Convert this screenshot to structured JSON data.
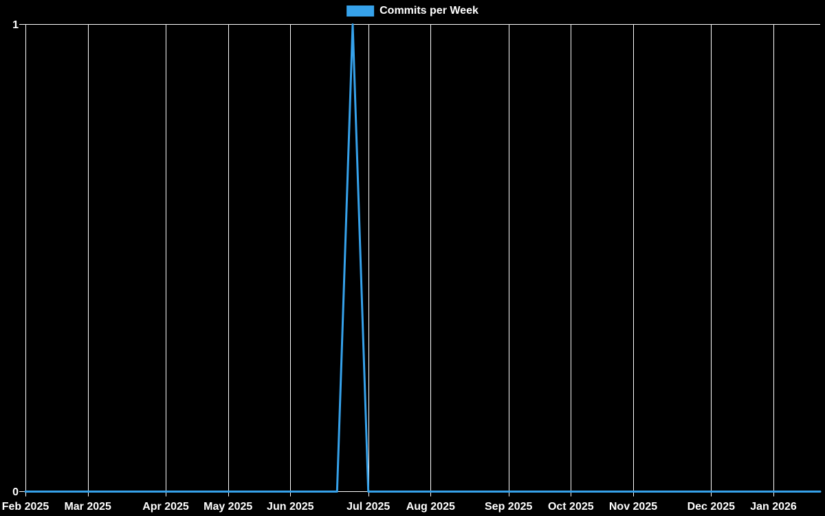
{
  "legend": {
    "label": "Commits per Week"
  },
  "chart_data": {
    "type": "line",
    "title": "",
    "x_unit": "week",
    "ylim": [
      0,
      1
    ],
    "grid": true,
    "legend_position": "top-center",
    "colors": {
      "background": "#000000",
      "grid": "#ffffff",
      "text": "#ffffff"
    },
    "y_ticks": [
      {
        "label": "0",
        "value": 0
      },
      {
        "label": "1",
        "value": 1
      }
    ],
    "x_ticks": [
      {
        "label": "Feb 2025",
        "week_index": 0
      },
      {
        "label": "Mar 2025",
        "week_index": 4
      },
      {
        "label": "Apr 2025",
        "week_index": 9
      },
      {
        "label": "May 2025",
        "week_index": 13
      },
      {
        "label": "Jun 2025",
        "week_index": 17
      },
      {
        "label": "Jul 2025",
        "week_index": 22
      },
      {
        "label": "Aug 2025",
        "week_index": 26
      },
      {
        "label": "Sep 2025",
        "week_index": 31
      },
      {
        "label": "Oct 2025",
        "week_index": 35
      },
      {
        "label": "Nov 2025",
        "week_index": 39
      },
      {
        "label": "Dec 2025",
        "week_index": 44
      },
      {
        "label": "Jan 2026",
        "week_index": 48
      }
    ],
    "series": [
      {
        "name": "Commits per Week",
        "color": "#36a2eb",
        "values": [
          0,
          0,
          0,
          0,
          0,
          0,
          0,
          0,
          0,
          0,
          0,
          0,
          0,
          0,
          0,
          0,
          0,
          0,
          0,
          0,
          0,
          1,
          0,
          0,
          0,
          0,
          0,
          0,
          0,
          0,
          0,
          0,
          0,
          0,
          0,
          0,
          0,
          0,
          0,
          0,
          0,
          0,
          0,
          0,
          0,
          0,
          0,
          0,
          0,
          0,
          0,
          0
        ]
      }
    ],
    "peak": {
      "value": 1,
      "week_index": 21
    }
  }
}
